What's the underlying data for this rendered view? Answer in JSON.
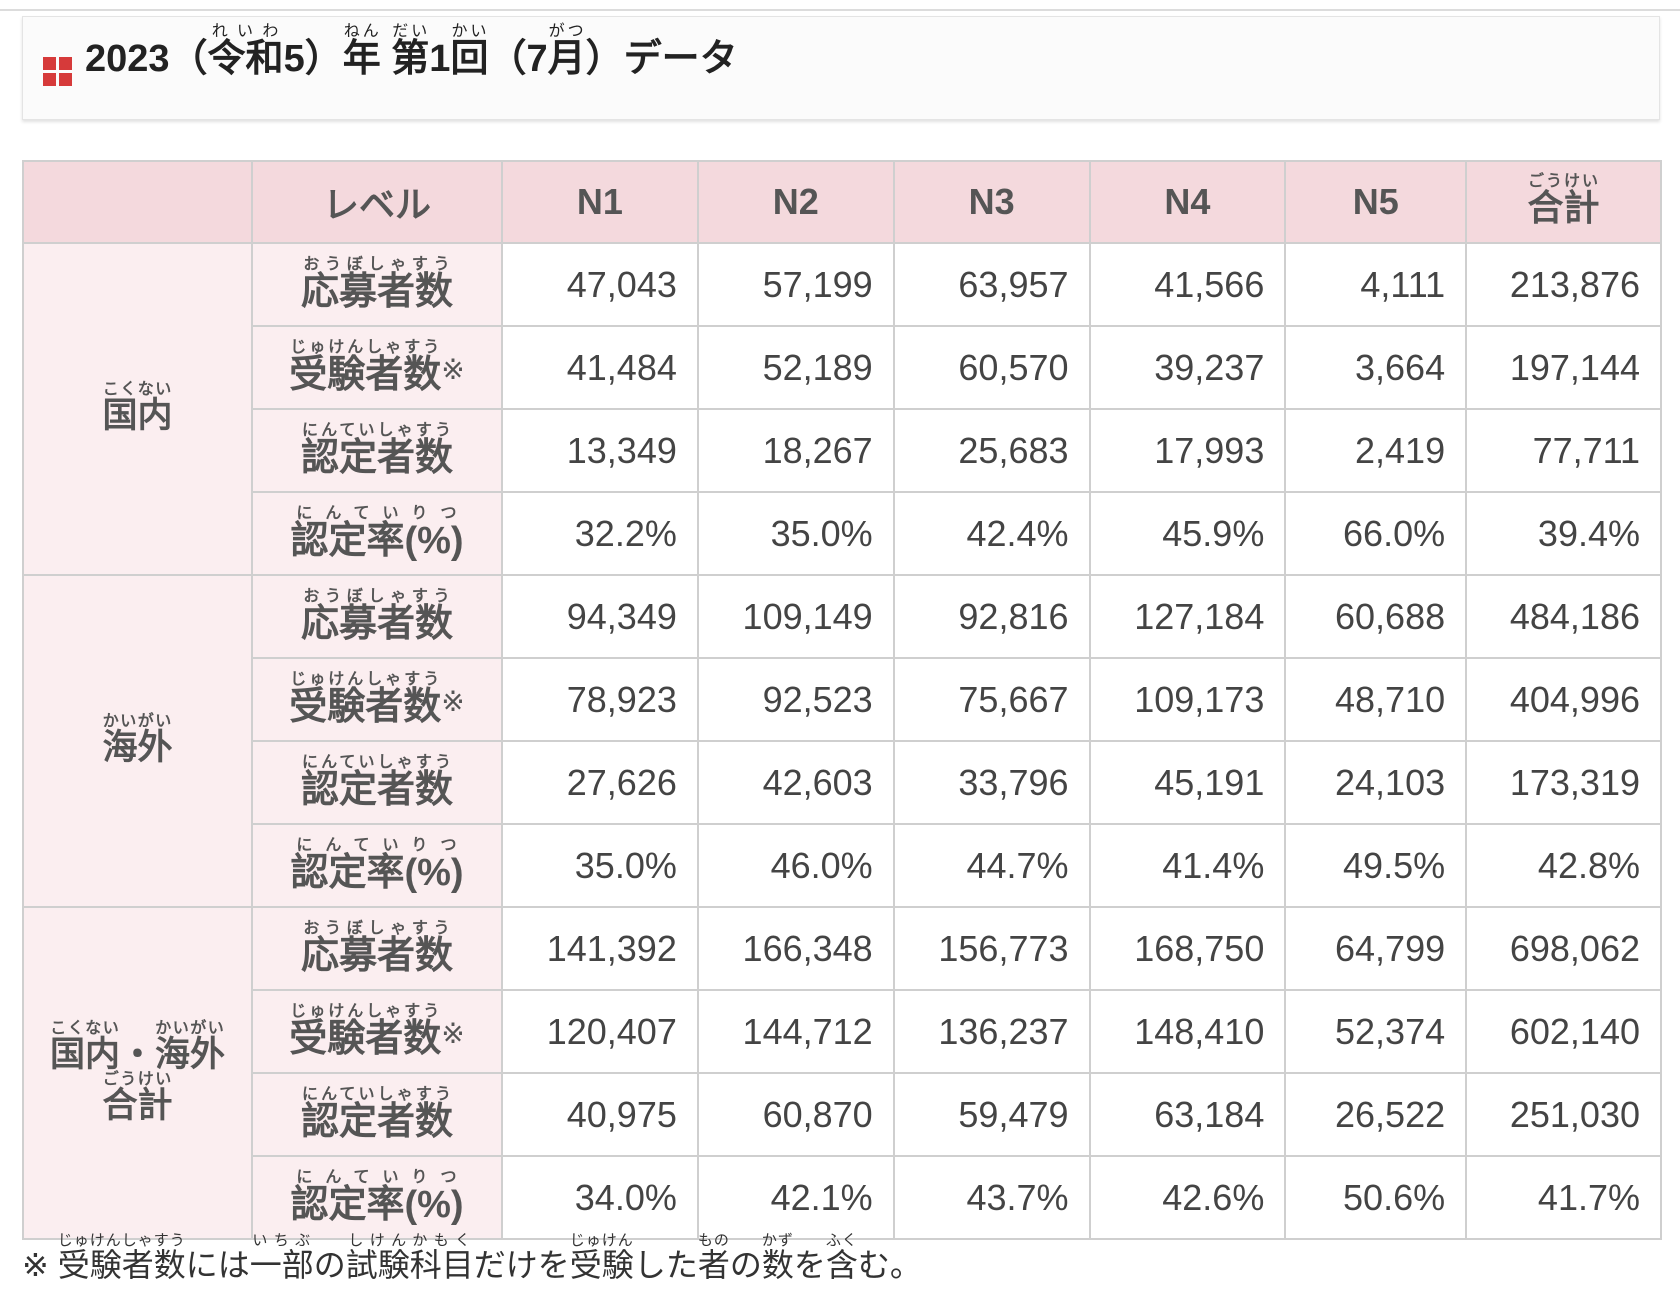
{
  "title": {
    "prefix": "2023（",
    "reiwa": "令和",
    "reiwa_ruby": "れいわ",
    "mid": "5）",
    "nen": "年",
    "nen_ruby": "ねん",
    "dai": "第",
    "dai_ruby": "だい",
    "kai_num": "1",
    "kai": "回",
    "kai_ruby": "かい",
    "paren_open": "（7",
    "gatsu": "月",
    "gatsu_ruby": "がつ",
    "suffix": "）データ"
  },
  "table": {
    "headers": {
      "level": "レベル",
      "n1": "N1",
      "n2": "N2",
      "n3": "N3",
      "n4": "N4",
      "n5": "N5",
      "total": "合計",
      "total_ruby": "ごうけい"
    },
    "metric_labels": {
      "applicants": "応募者数",
      "applicants_ruby": "おうぼしゃすう",
      "examinees": "受験者数",
      "examinees_ruby": "じゅけんしゃすう",
      "examinees_mark": "※",
      "passers": "認定者数",
      "passers_ruby": "にんていしゃすう",
      "rate": "認定率(%)",
      "rate_ruby": "にんていりつ"
    },
    "groups": {
      "domestic": {
        "label": "国内",
        "ruby": "こくない"
      },
      "overseas": {
        "label": "海外",
        "ruby": "かいがい"
      },
      "combined": {
        "label1": "国内",
        "ruby1": "こくない",
        "dot": "・",
        "label2": "海外",
        "ruby2": "かいがい",
        "label3": "合計",
        "ruby3": "ごうけい"
      }
    },
    "rows": [
      [
        "47,043",
        "57,199",
        "63,957",
        "41,566",
        "4,111",
        "213,876"
      ],
      [
        "41,484",
        "52,189",
        "60,570",
        "39,237",
        "3,664",
        "197,144"
      ],
      [
        "13,349",
        "18,267",
        "25,683",
        "17,993",
        "2,419",
        "77,711"
      ],
      [
        "32.2%",
        "35.0%",
        "42.4%",
        "45.9%",
        "66.0%",
        "39.4%"
      ],
      [
        "94,349",
        "109,149",
        "92,816",
        "127,184",
        "60,688",
        "484,186"
      ],
      [
        "78,923",
        "92,523",
        "75,667",
        "109,173",
        "48,710",
        "404,996"
      ],
      [
        "27,626",
        "42,603",
        "33,796",
        "45,191",
        "24,103",
        "173,319"
      ],
      [
        "35.0%",
        "46.0%",
        "44.7%",
        "41.4%",
        "49.5%",
        "42.8%"
      ],
      [
        "141,392",
        "166,348",
        "156,773",
        "168,750",
        "64,799",
        "698,062"
      ],
      [
        "120,407",
        "144,712",
        "136,237",
        "148,410",
        "52,374",
        "602,140"
      ],
      [
        "40,975",
        "60,870",
        "59,479",
        "63,184",
        "26,522",
        "251,030"
      ],
      [
        "34.0%",
        "42.1%",
        "43.7%",
        "42.6%",
        "50.6%",
        "41.7%"
      ]
    ]
  },
  "footnote": {
    "mark": "※ ",
    "w1": "受験者数",
    "w1_ruby": "じゅけんしゃすう",
    "t1": "には",
    "w2": "一部",
    "w2_ruby": "いちぶ",
    "t2": "の",
    "w3": "試験科目",
    "w3_ruby": "しけんかもく",
    "t3": "だけを",
    "w4": "受験",
    "w4_ruby": "じゅけん",
    "t4": "した",
    "w5": "者",
    "w5_ruby": "もの",
    "t5": "の",
    "w6": "数",
    "w6_ruby": "かず",
    "t6": "を",
    "w7": "含",
    "w7_ruby": "ふく",
    "t7": "む。"
  },
  "colors": {
    "header_bg": "#f4d9dd",
    "label_bg": "#fbeef0",
    "icon_red": "#d63a3a",
    "border": "#cfcfcf"
  }
}
